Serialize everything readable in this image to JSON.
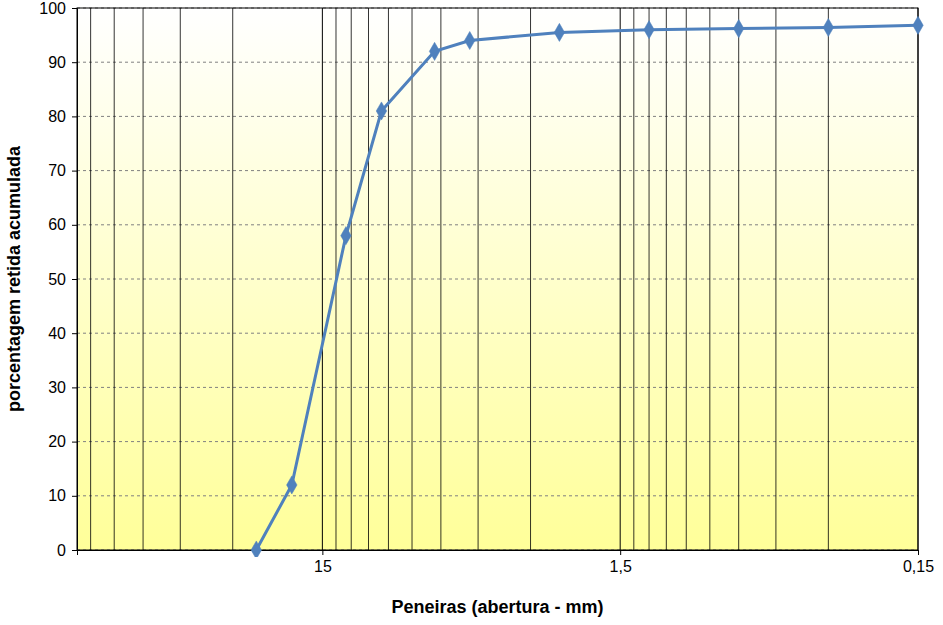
{
  "chart_data": {
    "type": "line",
    "x_label": "Peneiras (abertura - mm)",
    "y_label": "porcentagem retida acumulada",
    "x": [
      25,
      19,
      12.5,
      9.5,
      6.3,
      4.8,
      2.4,
      1.2,
      0.6,
      0.3,
      0.15
    ],
    "series": [
      {
        "name": "porcentagem retida acumulada",
        "color": "#4f81bd",
        "marker": "diamond",
        "line_style": "solid",
        "values": [
          0,
          12,
          58,
          81,
          92,
          94,
          95.5,
          96,
          96.2,
          96.4,
          96.8
        ]
      }
    ],
    "log": "x",
    "xlim": [
      100,
      0.15
    ],
    "xticks": [
      15,
      {
        "value": 1.5,
        "label": "1,5"
      },
      {
        "value": 0.15,
        "label": "0,15"
      }
    ],
    "ylim": [
      0,
      100
    ],
    "yticks": [
      0,
      10,
      20,
      30,
      40,
      50,
      60,
      70,
      80,
      90,
      100
    ],
    "grid": true
  }
}
